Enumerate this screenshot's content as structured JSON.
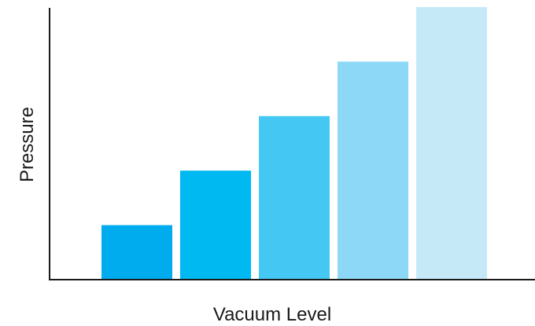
{
  "chart_data": {
    "type": "bar",
    "title": "",
    "xlabel": "Vacuum Level",
    "ylabel": "Pressure",
    "categories": [
      "",
      "",
      "",
      "",
      ""
    ],
    "values": [
      1,
      2,
      3,
      4,
      5
    ],
    "ylim": [
      0,
      5
    ],
    "grid": false,
    "tick_labels_shown": false,
    "bar_colors": [
      "#00acee",
      "#00b9f0",
      "#44c8f3",
      "#8dd8f6",
      "#c6e9f8"
    ],
    "axis_color": "#1a1a1a"
  }
}
